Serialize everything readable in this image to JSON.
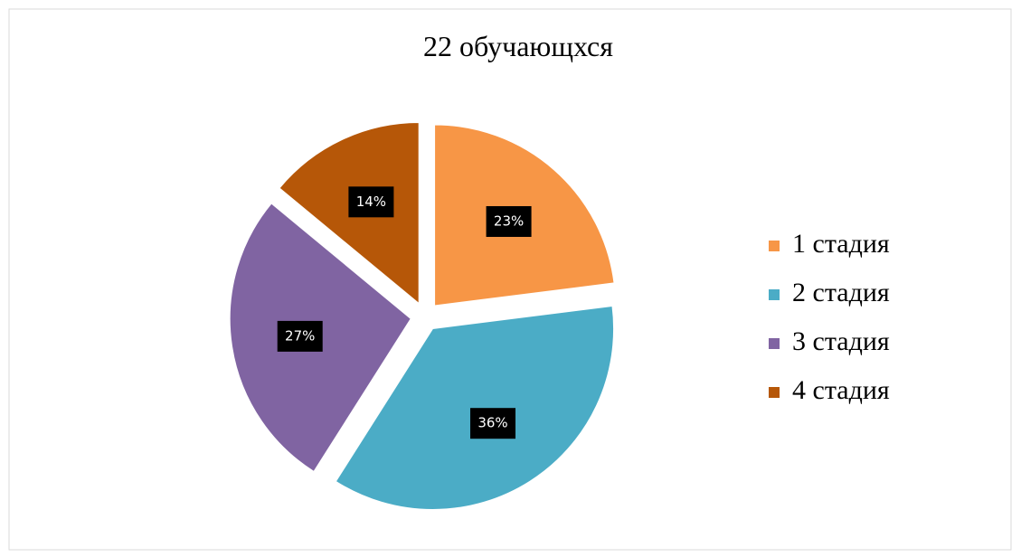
{
  "chart_data": {
    "type": "pie",
    "title": "22 обучающхся",
    "categories": [
      "1 стадия",
      "2 стадия",
      "3 стадия",
      "4 стадия"
    ],
    "values": [
      23,
      36,
      27,
      14
    ],
    "value_labels": [
      "23%",
      "36%",
      "27%",
      "14%"
    ],
    "colors": [
      "#f79646",
      "#4bacc6",
      "#8064a2",
      "#b65708"
    ],
    "legend": "right"
  }
}
